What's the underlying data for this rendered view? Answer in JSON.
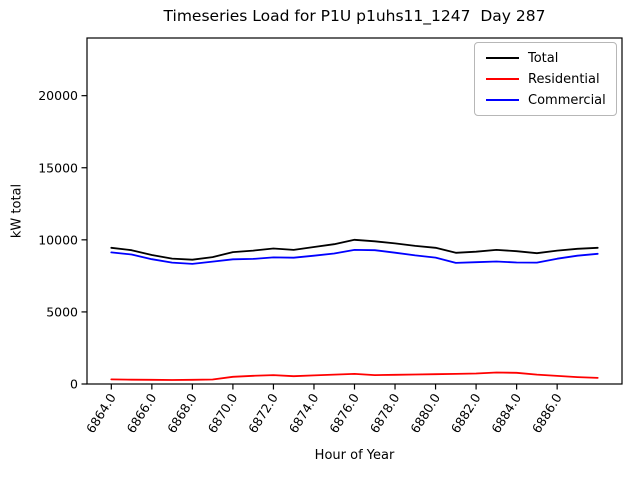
{
  "title": "Timeseries Load for P1U p1uhs11_1247  Day 287",
  "axis": {
    "xlabel": "Hour of Year",
    "ylabel": "kW total"
  },
  "legend": {
    "entries": [
      "Total",
      "Residential",
      "Commercial"
    ]
  },
  "chart_data": {
    "type": "line",
    "title": "Timeseries Load for P1U p1uhs11_1247  Day 287",
    "xlabel": "Hour of Year",
    "ylabel": "kW total",
    "grid": false,
    "legend_position": "upper right",
    "xlim": [
      6862.8,
      6889.2
    ],
    "ylim": [
      0,
      24000
    ],
    "xticks": [
      6864,
      6866,
      6868,
      6870,
      6872,
      6874,
      6876,
      6878,
      6880,
      6882,
      6884,
      6886
    ],
    "xtick_label_format": "one-decimal",
    "xtick_rotation_deg": 60,
    "yticks": [
      0,
      5000,
      10000,
      15000,
      20000
    ],
    "x": [
      6864,
      6865,
      6866,
      6867,
      6868,
      6869,
      6870,
      6871,
      6872,
      6873,
      6874,
      6875,
      6876,
      6877,
      6878,
      6879,
      6880,
      6881,
      6882,
      6883,
      6884,
      6885,
      6886,
      6887,
      6888
    ],
    "series": [
      {
        "name": "Total",
        "color": "#000000",
        "values": [
          9450,
          9280,
          8950,
          8700,
          8620,
          8800,
          9150,
          9250,
          9400,
          9300,
          9500,
          9700,
          10000,
          9900,
          9750,
          9580,
          9450,
          9100,
          9180,
          9300,
          9210,
          9070,
          9250,
          9380,
          9450
        ]
      },
      {
        "name": "Residential",
        "color": "#ff0000",
        "values": [
          320,
          300,
          290,
          280,
          290,
          310,
          500,
          570,
          620,
          540,
          600,
          650,
          700,
          620,
          640,
          660,
          680,
          700,
          730,
          800,
          780,
          650,
          560,
          480,
          420
        ]
      },
      {
        "name": "Commercial",
        "color": "#0000ff",
        "values": [
          9130,
          8980,
          8660,
          8420,
          8330,
          8490,
          8650,
          8680,
          8780,
          8760,
          8900,
          9050,
          9300,
          9280,
          9110,
          8920,
          8770,
          8400,
          8450,
          8500,
          8430,
          8420,
          8690,
          8900,
          9030
        ]
      }
    ]
  }
}
